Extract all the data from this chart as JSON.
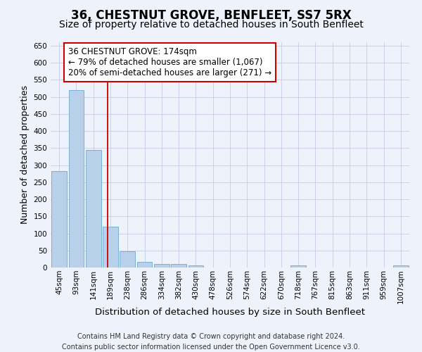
{
  "title": "36, CHESTNUT GROVE, BENFLEET, SS7 5RX",
  "subtitle": "Size of property relative to detached houses in South Benfleet",
  "xlabel": "Distribution of detached houses by size in South Benfleet",
  "ylabel": "Number of detached properties",
  "footer_line1": "Contains HM Land Registry data © Crown copyright and database right 2024.",
  "footer_line2": "Contains public sector information licensed under the Open Government Licence v3.0.",
  "bar_labels": [
    "45sqm",
    "93sqm",
    "141sqm",
    "189sqm",
    "238sqm",
    "286sqm",
    "334sqm",
    "382sqm",
    "430sqm",
    "478sqm",
    "526sqm",
    "574sqm",
    "622sqm",
    "670sqm",
    "718sqm",
    "767sqm",
    "815sqm",
    "863sqm",
    "911sqm",
    "959sqm",
    "1007sqm"
  ],
  "bar_values": [
    283,
    520,
    345,
    120,
    48,
    17,
    10,
    10,
    7,
    0,
    0,
    0,
    0,
    0,
    6,
    0,
    0,
    0,
    0,
    0,
    6
  ],
  "bar_color": "#b8d0ea",
  "bar_edgecolor": "#7aafd4",
  "vline_x": 2.83,
  "vline_color": "#cc0000",
  "ann_line1": "36 CHESTNUT GROVE: 174sqm",
  "ann_line2": "← 79% of detached houses are smaller (1,067)",
  "ann_line3": "20% of semi-detached houses are larger (271) →",
  "ylim": [
    0,
    660
  ],
  "yticks": [
    0,
    50,
    100,
    150,
    200,
    250,
    300,
    350,
    400,
    450,
    500,
    550,
    600,
    650
  ],
  "background_color": "#eef2fb",
  "plot_background": "#eef2fb",
  "grid_color": "#c5cde8",
  "title_fontsize": 12,
  "subtitle_fontsize": 10,
  "xlabel_fontsize": 9.5,
  "ylabel_fontsize": 9,
  "tick_fontsize": 7.5,
  "annotation_fontsize": 8.5,
  "footer_fontsize": 7
}
